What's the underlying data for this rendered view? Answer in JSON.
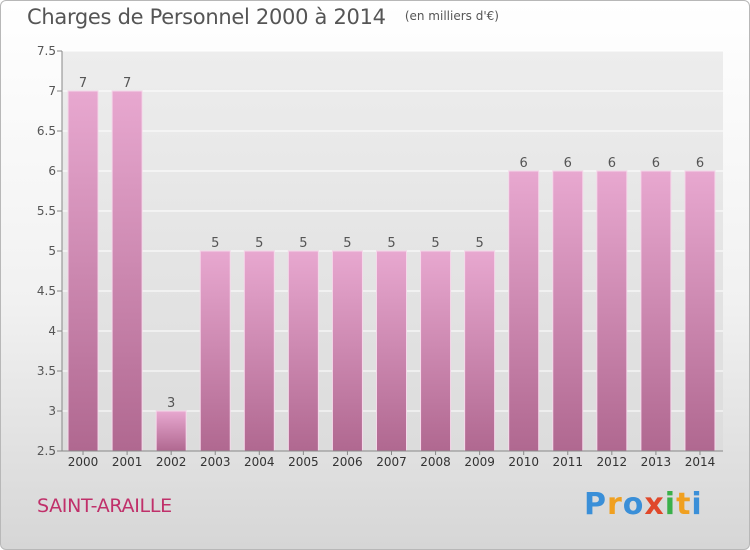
{
  "title": "Charges de Personnel 2000 à 2014",
  "subtitle": "(en milliers d'€)",
  "town": "SAINT-ARAILLE",
  "logo": {
    "text": "Proxiti",
    "letters": [
      {
        "ch": "P",
        "color": "#3a8fd8"
      },
      {
        "ch": "r",
        "color": "#f0a020"
      },
      {
        "ch": "o",
        "color": "#3a8fd8"
      },
      {
        "ch": "x",
        "color": "#e0482a"
      },
      {
        "ch": "i",
        "color": "#3ab04a"
      },
      {
        "ch": "t",
        "color": "#f0a020"
      },
      {
        "ch": "i",
        "color": "#3a8fd8"
      }
    ]
  },
  "chart_data": {
    "type": "bar",
    "categories": [
      "2000",
      "2001",
      "2002",
      "2003",
      "2004",
      "2005",
      "2006",
      "2007",
      "2008",
      "2009",
      "2010",
      "2011",
      "2012",
      "2013",
      "2014"
    ],
    "values": [
      7,
      7,
      3,
      5,
      5,
      5,
      5,
      5,
      5,
      5,
      6,
      6,
      6,
      6,
      6
    ],
    "data_labels": [
      "7",
      "7",
      "3",
      "5",
      "5",
      "5",
      "5",
      "5",
      "5",
      "5",
      "6",
      "6",
      "6",
      "6",
      "6"
    ],
    "y_ticks": [
      "2.5",
      "3",
      "3.5",
      "4",
      "4.5",
      "5",
      "5.5",
      "6",
      "6.5",
      "7",
      "7.5"
    ],
    "ylim": [
      2.5,
      7.5
    ],
    "grid": true,
    "bar_color_top": "#e8a8d0",
    "bar_color_bottom": "#b06890",
    "plot_bg": "#e8e8e8"
  }
}
